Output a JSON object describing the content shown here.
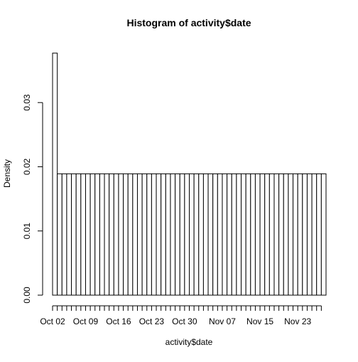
{
  "chart_data": {
    "type": "bar",
    "title": "Histogram of activity$date",
    "xlabel": "activity$date",
    "ylabel": "Density",
    "ylim": [
      0,
      0.038
    ],
    "y_ticks": [
      0.0,
      0.01,
      0.02,
      0.03
    ],
    "y_tick_labels": [
      "0.00",
      "0.01",
      "0.02",
      "0.03"
    ],
    "x_tick_labels": [
      "Oct 02",
      "Oct 09",
      "Oct 16",
      "Oct 23",
      "Oct 30",
      "Nov 07",
      "Nov 15",
      "Nov 23"
    ],
    "bin_count": 58,
    "values": [
      0.0377,
      0.0189,
      0.0189,
      0.0189,
      0.0189,
      0.0189,
      0.0189,
      0.0189,
      0.0189,
      0.0189,
      0.0189,
      0.0189,
      0.0189,
      0.0189,
      0.0189,
      0.0189,
      0.0189,
      0.0189,
      0.0189,
      0.0189,
      0.0189,
      0.0189,
      0.0189,
      0.0189,
      0.0189,
      0.0189,
      0.0189,
      0.0189,
      0.0189,
      0.0189,
      0.0189,
      0.0189,
      0.0189,
      0.0189,
      0.0189,
      0.0189,
      0.0189,
      0.0189,
      0.0189,
      0.0189,
      0.0189,
      0.0189,
      0.0189,
      0.0189,
      0.0189,
      0.0189,
      0.0189,
      0.0189,
      0.0189,
      0.0189,
      0.0189,
      0.0189,
      0.0189,
      0.0189,
      0.0189,
      0.0189,
      0.0189,
      0.0189
    ],
    "colors": {
      "bar_fill": "#ffffff",
      "bar_stroke": "#000000",
      "axis": "#000000"
    }
  }
}
